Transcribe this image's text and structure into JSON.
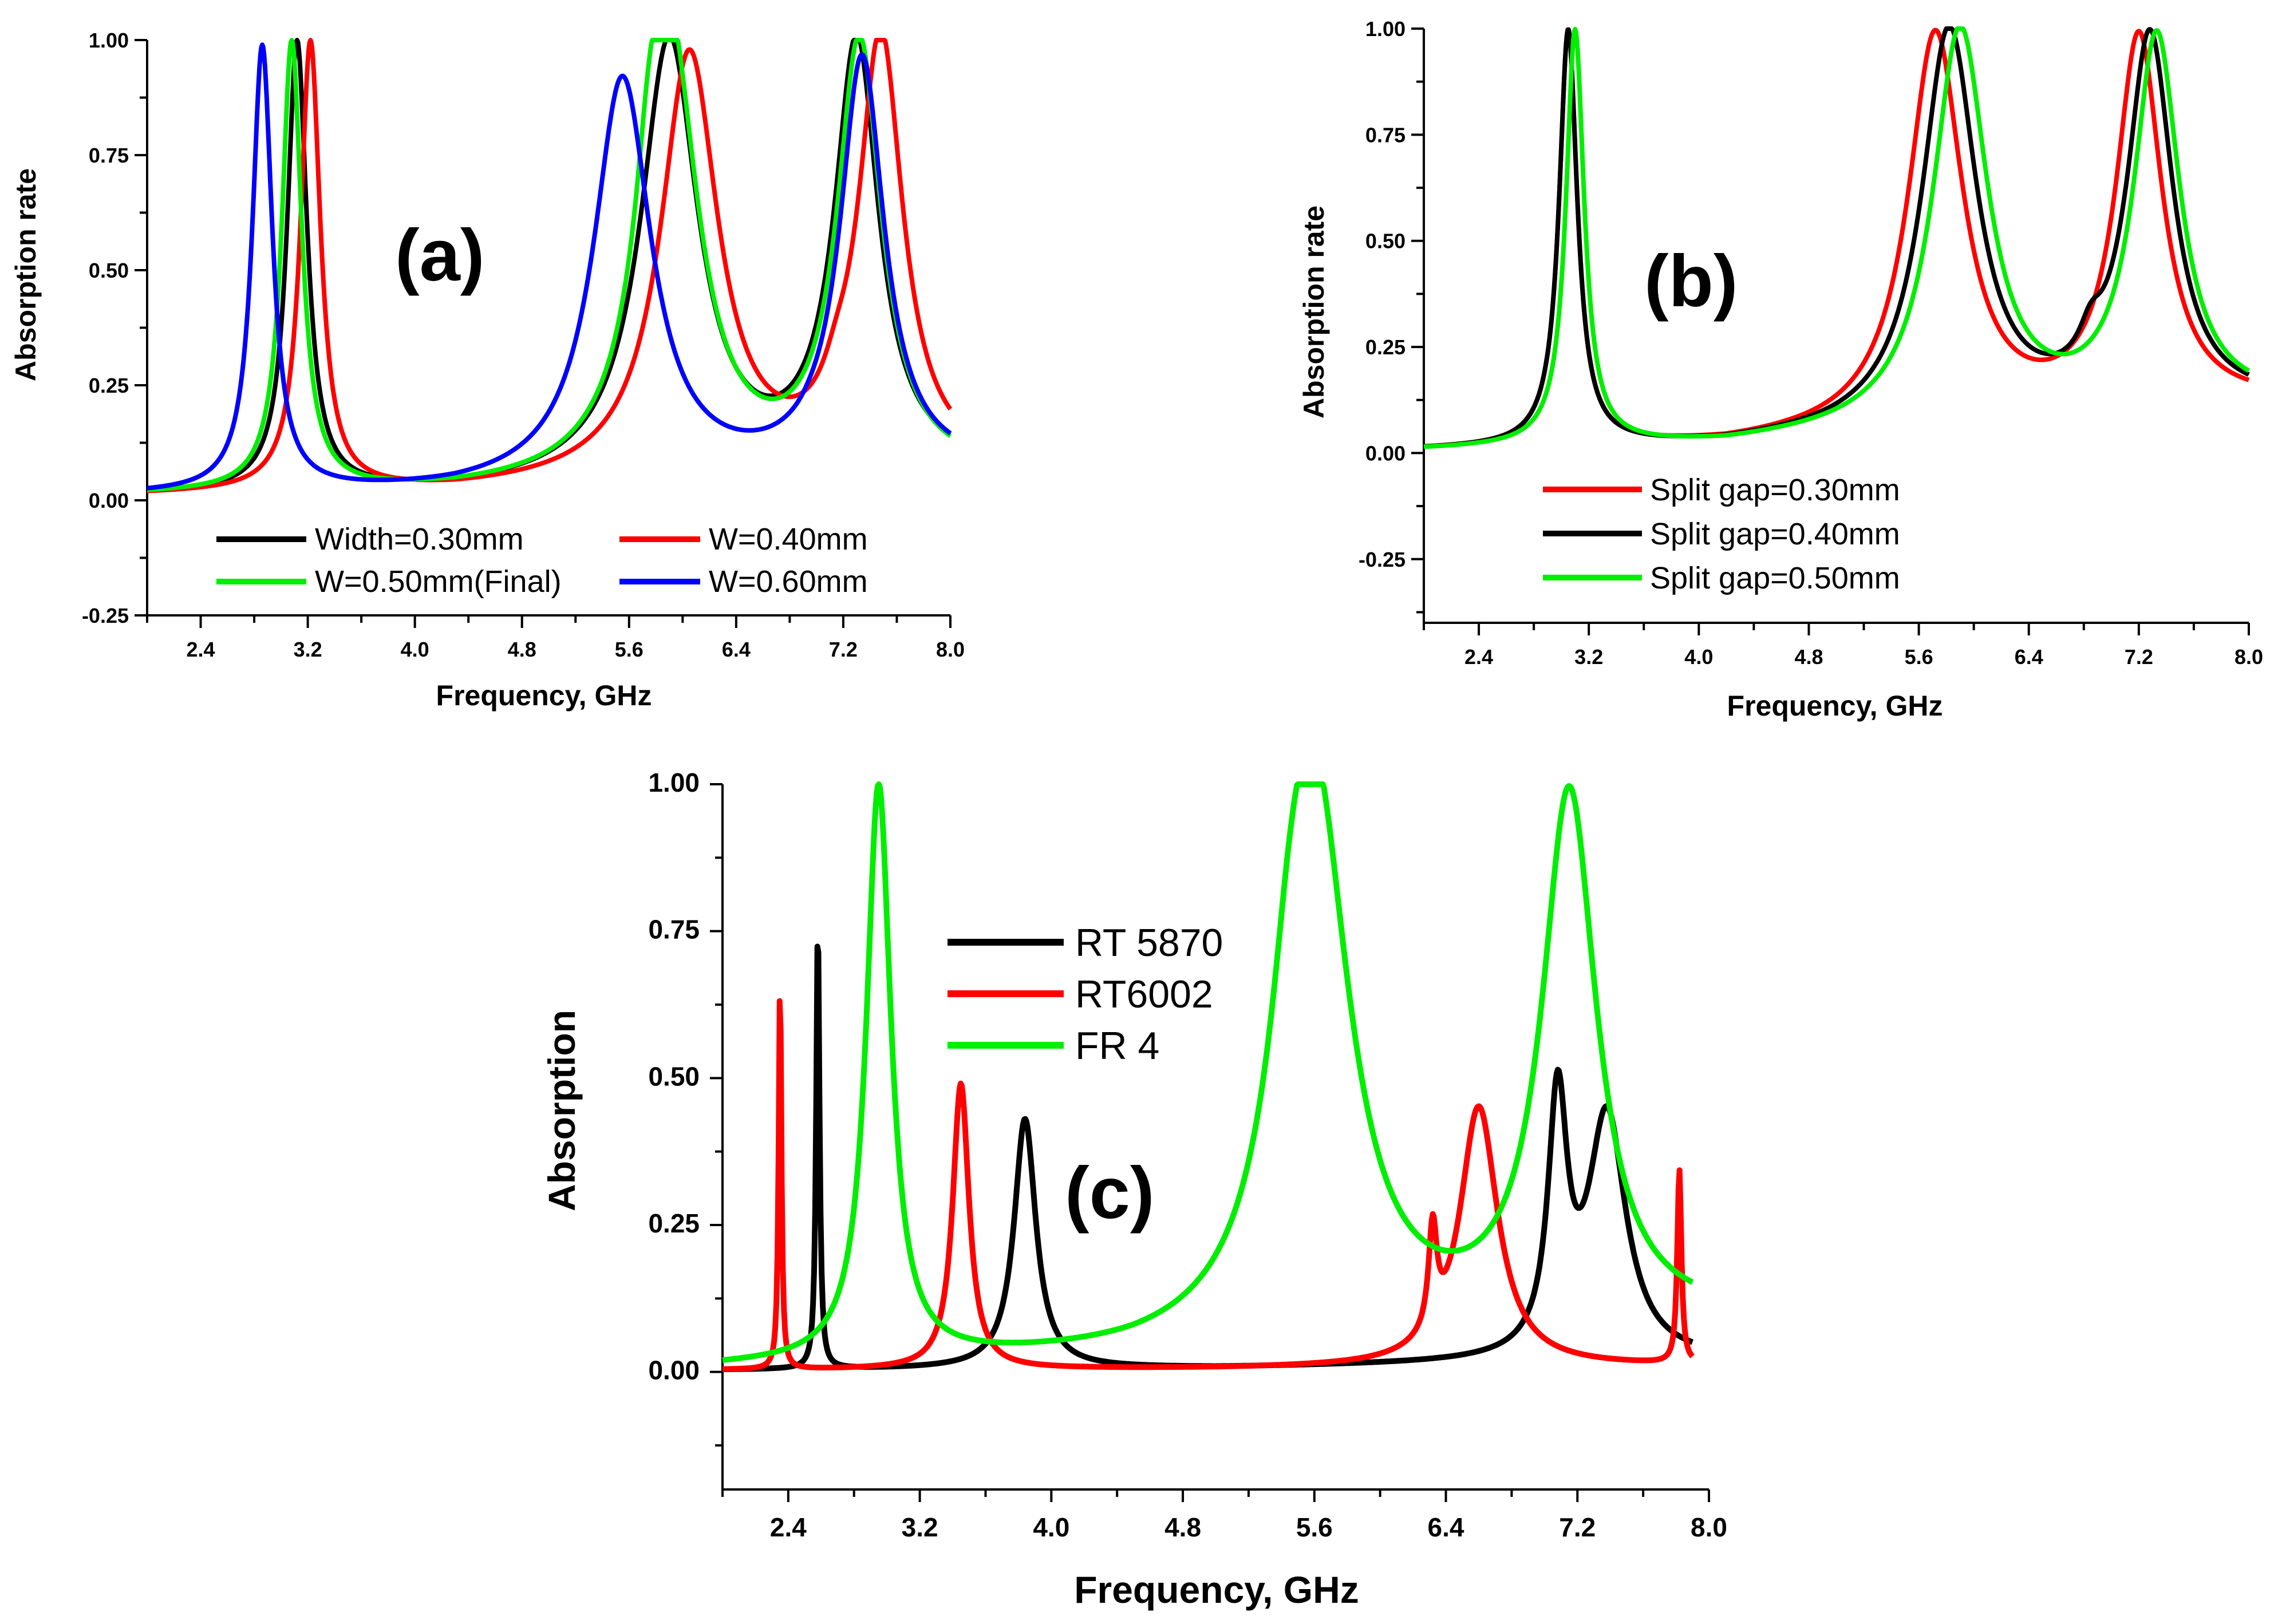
{
  "chart_data": [
    {
      "id": "a",
      "type": "line",
      "panel_label": "(a)",
      "xlabel": "Frequency, GHz",
      "ylabel": "Absorption rate",
      "xlim": [
        2.0,
        8.0
      ],
      "ylim": [
        -0.25,
        1.0
      ],
      "xticks": [
        "2.4",
        "3.2",
        "4.0",
        "4.8",
        "5.6",
        "6.4",
        "7.2",
        "8.0"
      ],
      "yticks": [
        "-0.25",
        "0.00",
        "0.25",
        "0.50",
        "0.75",
        "1.00"
      ],
      "legend_position": "bottom-center",
      "series": [
        {
          "name": "Width=0.30mm",
          "color": "#000000",
          "peaks": [
            [
              3.12,
              0.99,
              0.09
            ],
            [
              5.9,
              0.99,
              0.26
            ],
            [
              7.3,
              0.98,
              0.2
            ]
          ],
          "baseline": [
            [
              2.0,
              0.01
            ],
            [
              4.3,
              0.015
            ],
            [
              8.0,
              0.06
            ]
          ]
        },
        {
          "name": "W=0.40mm",
          "color": "#ff0000",
          "peaks": [
            [
              3.22,
              0.99,
              0.09
            ],
            [
              6.05,
              0.96,
              0.26
            ],
            [
              7.48,
              0.99,
              0.2
            ],
            [
              7.15,
              0.1,
              0.12
            ]
          ],
          "baseline": [
            [
              2.0,
              0.01
            ],
            [
              4.3,
              0.015
            ],
            [
              8.0,
              0.06
            ]
          ]
        },
        {
          "name": "W=0.50mm(Final)",
          "color": "#00ee00",
          "peaks": [
            [
              3.08,
              0.99,
              0.09
            ],
            [
              5.9,
              0.99,
              0.26
            ],
            [
              5.75,
              0.22,
              0.12
            ],
            [
              7.32,
              0.98,
              0.2
            ]
          ],
          "baseline": [
            [
              2.0,
              0.01
            ],
            [
              4.3,
              0.015
            ],
            [
              8.0,
              0.05
            ]
          ]
        },
        {
          "name": "W=0.60mm",
          "color": "#0000ff",
          "peaks": [
            [
              2.86,
              0.98,
              0.09
            ],
            [
              5.55,
              0.91,
              0.26
            ],
            [
              7.34,
              0.95,
              0.2
            ],
            [
              6.95,
              0.05,
              0.06
            ]
          ],
          "baseline": [
            [
              2.0,
              0.01
            ],
            [
              4.3,
              0.015
            ],
            [
              8.0,
              0.06
            ]
          ]
        }
      ]
    },
    {
      "id": "b",
      "type": "line",
      "panel_label": "(b)",
      "xlabel": "Frequency, GHz",
      "ylabel": "Absorption rate",
      "xlim": [
        2.0,
        8.0
      ],
      "ylim": [
        -0.4,
        1.0
      ],
      "xticks": [
        "2.4",
        "3.2",
        "4.0",
        "4.8",
        "5.6",
        "6.4",
        "7.2",
        "8.0"
      ],
      "yticks": [
        "-0.25",
        "0.00",
        "0.25",
        "0.50",
        "0.75",
        "1.00"
      ],
      "legend_position": "bottom-center",
      "series": [
        {
          "name": "Split gap=0.30mm",
          "color": "#ff0000",
          "peaks": [
            [
              3.05,
              0.99,
              0.08
            ],
            [
              5.72,
              0.98,
              0.24
            ],
            [
              7.2,
              0.97,
              0.2
            ]
          ],
          "baseline": [
            [
              2.0,
              0.005
            ],
            [
              4.2,
              0.015
            ],
            [
              8.0,
              0.11
            ]
          ]
        },
        {
          "name": "Split gap=0.40mm",
          "color": "#000000",
          "peaks": [
            [
              3.05,
              0.99,
              0.08
            ],
            [
              5.82,
              0.99,
              0.24
            ],
            [
              7.28,
              0.97,
              0.2
            ],
            [
              6.85,
              0.15,
              0.1
            ]
          ],
          "baseline": [
            [
              2.0,
              0.005
            ],
            [
              4.2,
              0.015
            ],
            [
              8.0,
              0.11
            ]
          ]
        },
        {
          "name": "Split gap=0.50mm",
          "color": "#00ee00",
          "peaks": [
            [
              3.1,
              0.99,
              0.08
            ],
            [
              5.9,
              0.99,
              0.24
            ],
            [
              7.33,
              0.97,
              0.2
            ]
          ],
          "baseline": [
            [
              2.0,
              0.005
            ],
            [
              4.2,
              0.015
            ],
            [
              8.0,
              0.11
            ]
          ]
        }
      ]
    },
    {
      "id": "c",
      "type": "line",
      "panel_label": "(c)",
      "xlabel": "Frequency, GHz",
      "ylabel": "Absorption",
      "xlim": [
        2.0,
        8.0
      ],
      "ylim": [
        -0.2,
        1.0
      ],
      "xticks": [
        "2.4",
        "3.2",
        "4.0",
        "4.8",
        "5.6",
        "6.4",
        "7.2",
        "8.0"
      ],
      "yticks": [
        "0.00",
        "0.25",
        "0.50",
        "0.75",
        "1.00"
      ],
      "legend_position": "top-left",
      "series": [
        {
          "name": "RT 5870",
          "color": "#000000",
          "peaks": [
            [
              2.58,
              0.77,
              0.012
            ],
            [
              3.84,
              0.43,
              0.08
            ],
            [
              7.08,
              0.44,
              0.07
            ],
            [
              7.38,
              0.43,
              0.14
            ]
          ],
          "baseline": [
            [
              2.0,
              0.003
            ],
            [
              5.0,
              0.006
            ],
            [
              8.0,
              0.02
            ]
          ]
        },
        {
          "name": "RT6002",
          "color": "#ff0000",
          "peaks": [
            [
              2.35,
              0.67,
              0.01
            ],
            [
              3.45,
              0.49,
              0.06
            ],
            [
              6.32,
              0.18,
              0.03
            ],
            [
              6.6,
              0.45,
              0.14
            ],
            [
              7.82,
              0.34,
              0.015
            ]
          ],
          "baseline": [
            [
              2.0,
              0.003
            ],
            [
              5.0,
              0.005
            ],
            [
              7.9,
              0.01
            ]
          ]
        },
        {
          "name": "FR 4",
          "color": "#00ee00",
          "peaks": [
            [
              2.95,
              0.99,
              0.09
            ],
            [
              5.6,
              0.97,
              0.26
            ],
            [
              5.45,
              0.2,
              0.14
            ],
            [
              7.15,
              0.97,
              0.2
            ]
          ],
          "baseline": [
            [
              2.0,
              0.005
            ],
            [
              4.5,
              0.02
            ],
            [
              7.9,
              0.08
            ]
          ]
        }
      ],
      "x_end": 7.9
    }
  ]
}
